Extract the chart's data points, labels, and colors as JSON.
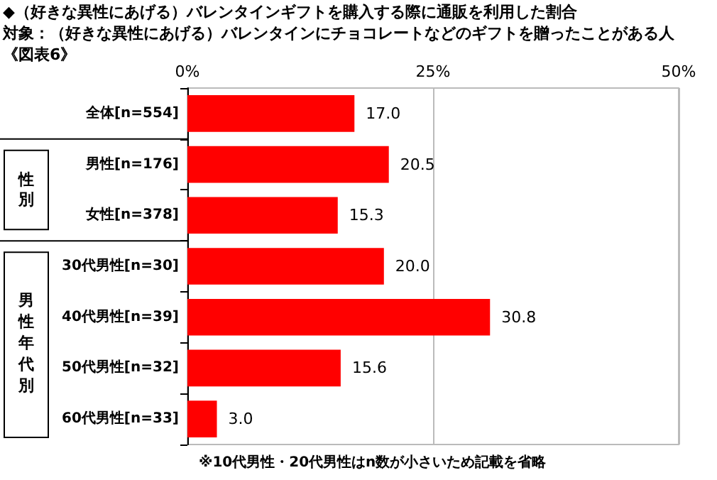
{
  "chart_data": {
    "type": "bar",
    "orientation": "horizontal",
    "title": "◆（好きな異性にあげる）バレンタインギフトを購入する際に通販を利用した割合",
    "subtitle": "対象：（好きな異性にあげる）バレンタインにチョコレートなどのギフトを贈ったことがある人",
    "annotations": [
      "《図表6》",
      "性別",
      "男性年代別",
      "※10代男性・20代男性はn数が小さいため記載を省略"
    ],
    "categories": [
      "全体[n=554]",
      "男性[n=176]",
      "女性[n=378]",
      "30代男性[n=30]",
      "40代男性[n=39]",
      "50代男性[n=32]",
      "60代男性[n=33]"
    ],
    "values": [
      17.0,
      20.5,
      15.3,
      20.0,
      30.8,
      15.6,
      3.0
    ],
    "value_labels": [
      "17.0",
      "20.5",
      "15.3",
      "20.0",
      "30.8",
      "15.6",
      "3.0"
    ],
    "color": "#ff0000",
    "xlim": [
      0,
      50
    ],
    "xticks": [
      {
        "value": 0,
        "label": "0%"
      },
      {
        "value": 25,
        "label": "25%"
      },
      {
        "value": 50,
        "label": "50%"
      }
    ],
    "grid": "x"
  }
}
